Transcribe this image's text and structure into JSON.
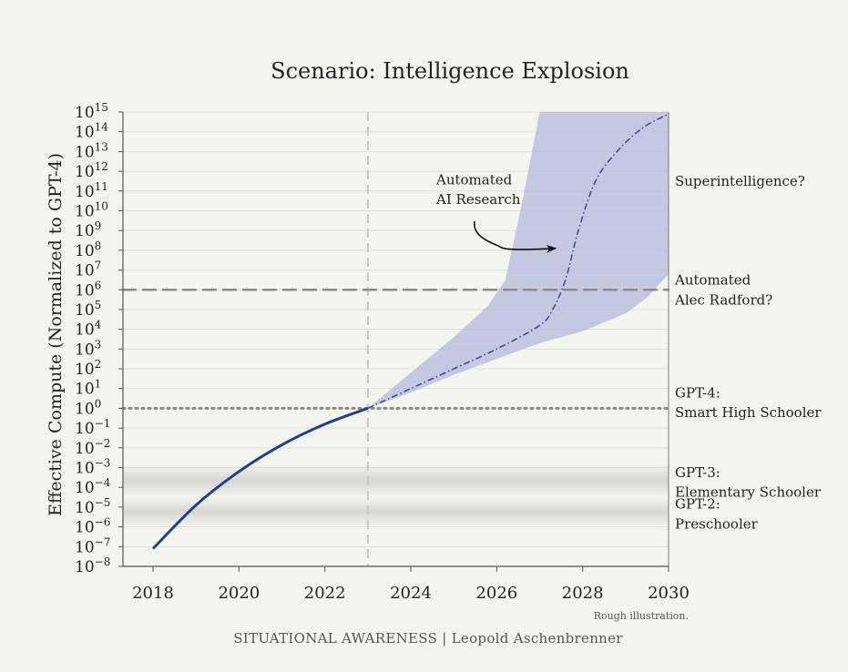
{
  "chart_data": {
    "type": "line",
    "title": "Scenario: Intelligence Explosion",
    "ylabel": "Effective Compute (Normalized to GPT-4)",
    "xlabel": "",
    "y_scale": "log10",
    "xlim": [
      2017.3,
      2030
    ],
    "ylim_exponent": [
      -8,
      15
    ],
    "x_ticks": [
      "2018",
      "2020",
      "2022",
      "2024",
      "2026",
      "2028",
      "2030"
    ],
    "x_tick_values": [
      2018,
      2020,
      2022,
      2024,
      2026,
      2028,
      2030
    ],
    "y_tick_exponents": [
      -8,
      -7,
      -6,
      -5,
      -4,
      -3,
      -2,
      -1,
      0,
      1,
      2,
      3,
      4,
      5,
      6,
      7,
      8,
      9,
      10,
      11,
      12,
      13,
      14,
      15
    ],
    "y_tick_base": "10",
    "grid": "horizontal",
    "series": [
      {
        "style": "solid",
        "color": "#233d8f",
        "x": [
          2018,
          2019,
          2020,
          2021,
          2022,
          2023
        ],
        "y_log10": [
          -7.1,
          -4.9,
          -3.2,
          -1.85,
          -0.8,
          0
        ]
      },
      {
        "style": "dash-dot",
        "color": "#3d4ea0",
        "x": [
          2023,
          2024,
          2025,
          2026,
          2027,
          2027.3,
          2027.6,
          2027.9,
          2028.3,
          2028.8,
          2029.4,
          2030
        ],
        "y_log10": [
          0,
          1.0,
          2.0,
          3.0,
          4.2,
          5.0,
          6.5,
          9.0,
          11.5,
          13.0,
          14.2,
          14.9
        ]
      }
    ],
    "uncertainty_band": {
      "color": "#b3b8dc",
      "upper": {
        "x": [
          2023,
          2024,
          2025,
          2025.8,
          2026.2,
          2026.6,
          2027.0
        ],
        "y_log10": [
          0,
          1.8,
          3.6,
          5.2,
          6.5,
          10.5,
          15
        ]
      },
      "lower": {
        "x": [
          2023,
          2024,
          2025,
          2026,
          2027,
          2028,
          2029,
          2029.5,
          2030
        ],
        "y_log10": [
          0,
          0.8,
          1.7,
          2.5,
          3.3,
          3.9,
          4.8,
          5.6,
          6.8
        ]
      }
    },
    "reference_lines": [
      {
        "kind": "vertical",
        "x": 2023,
        "style": "dashed",
        "color": "#c8c8c8"
      },
      {
        "kind": "horizontal",
        "y_log10": 6,
        "style": "dashed",
        "color": "#8a8a8a"
      },
      {
        "kind": "horizontal",
        "y_log10": 0,
        "style": "dotted",
        "color": "#8a8a8a"
      }
    ],
    "shaded_bands": [
      {
        "y_log10_from": -2.8,
        "y_log10_to": -4.5,
        "label_lines": [
          "GPT-3:",
          "Elementary Schooler"
        ]
      },
      {
        "y_log10_from": -4.5,
        "y_log10_to": -6.0,
        "label_lines": [
          "GPT-2:",
          "Preschooler"
        ]
      }
    ],
    "right_labels": [
      {
        "lines": [
          "Superintelligence?"
        ],
        "y_log10": 11.5
      },
      {
        "lines": [
          "Automated",
          "Alec Radford?"
        ],
        "y_log10": 6
      },
      {
        "lines": [
          "GPT-4:",
          "Smart High Schooler"
        ],
        "y_log10": 0.3
      }
    ],
    "annotation": {
      "lines": [
        "Automated",
        "AI Research"
      ],
      "points_to": {
        "x": 2027.5,
        "y_log10": 8.1
      }
    },
    "note": "Rough illustration.",
    "credit": "SITUATIONAL AWARENESS | Leopold Aschenbrenner"
  }
}
